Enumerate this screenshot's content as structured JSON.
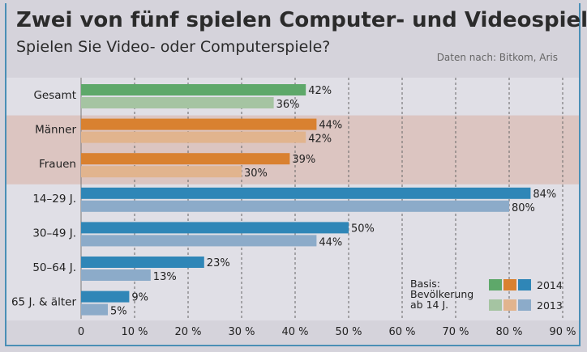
{
  "header": {
    "title": "Zwei von fünf spielen Computer- und Videospiele",
    "subtitle": "Spielen Sie Video- oder Computerspiele?",
    "source": "Daten nach: Bitkom, Aris"
  },
  "colors": {
    "green_2014": "#5ea86a",
    "green_2013": "#a5c4a2",
    "orange_2014": "#d98130",
    "orange_2013": "#e1b48e",
    "blue_2014": "#2f86b7",
    "blue_2013": "#8cabc9",
    "band": "#dcc5c1"
  },
  "chart_data": {
    "type": "bar",
    "orientation": "horizontal",
    "title": "Zwei von fünf spielen Computer- und Videospiele",
    "subtitle": "Spielen Sie Video- oder Computerspiele?",
    "categories": [
      "Gesamt",
      "Männer",
      "Frauen",
      "14–29 J.",
      "30–49 J.",
      "50–64 J.",
      "65 J. & älter"
    ],
    "category_groups": [
      "green",
      "orange",
      "orange",
      "blue",
      "blue",
      "blue",
      "blue"
    ],
    "series": [
      {
        "name": "2014",
        "values": [
          42,
          44,
          39,
          84,
          50,
          23,
          9
        ]
      },
      {
        "name": "2013",
        "values": [
          36,
          42,
          30,
          80,
          44,
          13,
          5
        ]
      }
    ],
    "xlim": [
      0,
      90
    ],
    "xticks": [
      "0",
      "10 %",
      "20 %",
      "30 %",
      "40 %",
      "50 %",
      "60 %",
      "70 %",
      "80 %",
      "90 %"
    ],
    "value_suffix": "%",
    "grid": "dashed vertical",
    "legend": {
      "basis_lines": [
        "Basis:",
        "Bevölkerung",
        "ab 14 J."
      ],
      "entries": [
        "2014",
        "2013"
      ],
      "position": "bottom-right"
    }
  }
}
